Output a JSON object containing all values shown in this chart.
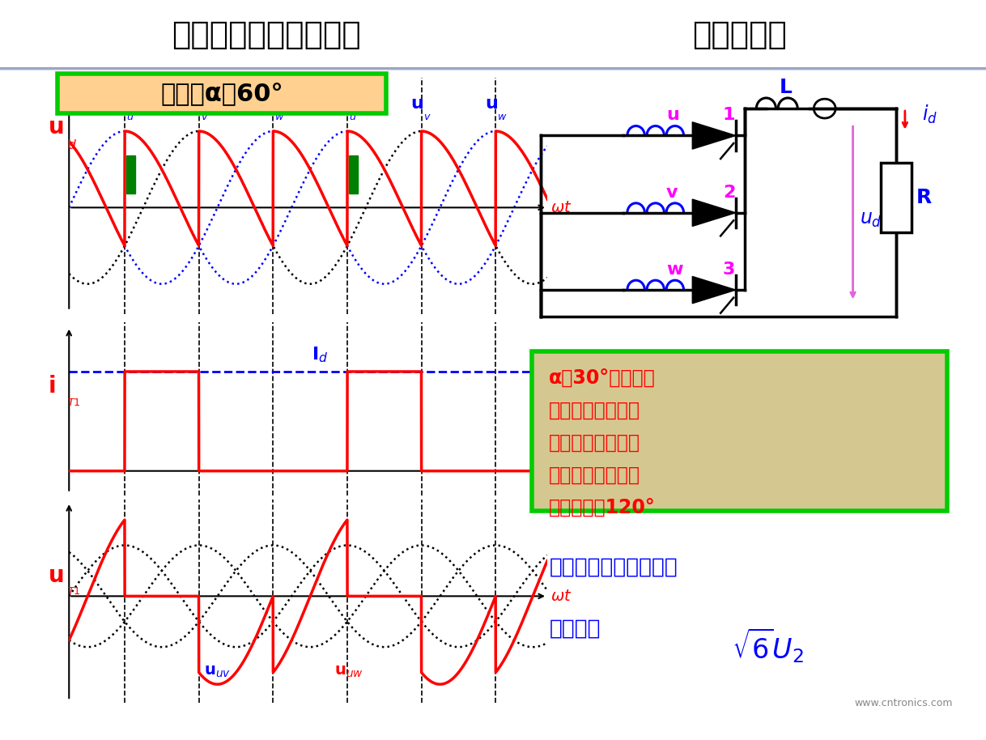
{
  "title_left": "三相半波可控整流电路",
  "title_right": "电感性负载",
  "control_angle_text": "控制角α＝60°",
  "alpha_deg": 60,
  "note_lines": [
    "α＞30°时，电压",
    "波形出现负值，波",
    "形连续，输出电压",
    "平均值下降，晶闸",
    "管导通角为120°"
  ],
  "formula_line1": "晶闸管承受的最大正反",
  "formula_line2": "向压降为",
  "bg_color": "#ffffff",
  "title_bg_top": "#c8cce0",
  "title_bg_bot": "#9098b8",
  "ctrl_box_bg": "#ffd090",
  "ctrl_box_border": "#00cc00",
  "note_box_bg": "#d4c890",
  "note_box_border": "#00cc00",
  "red": "#ff0000",
  "blue": "#0000ff",
  "black": "#000000",
  "green": "#00aa00",
  "magenta": "#ff00ff",
  "gray": "#888888",
  "website": "www.cntronics.com"
}
